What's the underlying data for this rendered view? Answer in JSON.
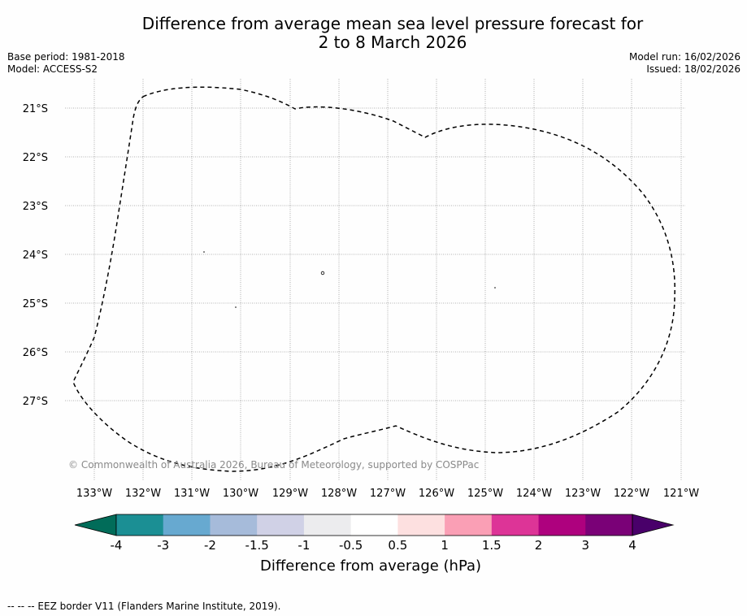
{
  "title": {
    "line1": "Difference from average mean sea level pressure forecast for",
    "line2": "2 to 8 March 2026"
  },
  "meta": {
    "base_period": "Base period: 1981-2018",
    "model": "Model: ACCESS-S2",
    "model_run": "Model run: 16/02/2026",
    "issued": "Issued: 18/02/2026"
  },
  "map": {
    "lat_labels": [
      "21°S",
      "22°S",
      "23°S",
      "24°S",
      "25°S",
      "26°S",
      "27°S"
    ],
    "lon_labels": [
      "133°W",
      "132°W",
      "131°W",
      "130°W",
      "129°W",
      "128°W",
      "127°W",
      "126°W",
      "125°W",
      "124°W",
      "123°W",
      "122°W",
      "121°W"
    ],
    "credit": "© Commonwealth of Australia 2026, Bureau of Meteorology, supported by COSPPac"
  },
  "colorbar": {
    "colors": [
      "#1b8f94",
      "#67a9d0",
      "#a6bbda",
      "#d0d1e6",
      "#ececee",
      "#ffffff",
      "#fde0e0",
      "#fa9fb5",
      "#dd3497",
      "#ae017e",
      "#7a0177"
    ],
    "under_color": "#016c59",
    "over_color": "#49006a",
    "tick_labels": [
      "-4",
      "-3",
      "-2",
      "-1.5",
      "-1",
      "-0.5",
      "0.5",
      "1",
      "1.5",
      "2",
      "3",
      "4"
    ],
    "label": "Difference from average (hPa)"
  },
  "footnote": "--  --  -- EEZ border V11 (Flanders Marine Institute, 2019)."
}
